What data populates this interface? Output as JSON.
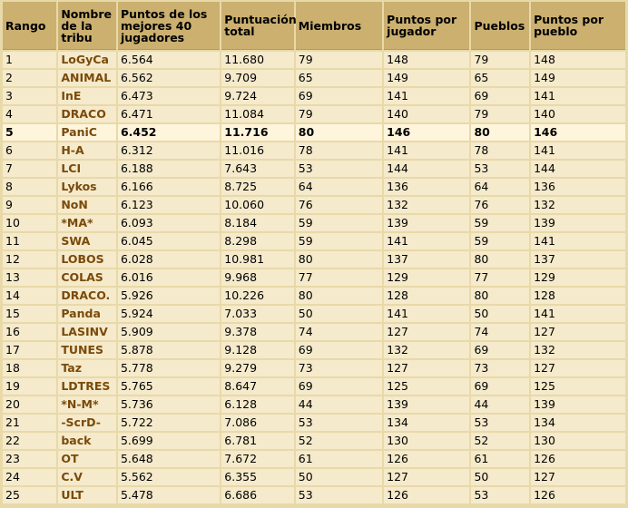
{
  "headers": {
    "rank": "Rango",
    "tribe": "Nombre de la tribu",
    "top40": "Puntos de los mejores 40 jugadores",
    "total": "Puntuación total",
    "members": "Miembros",
    "per_player": "Puntos por jugador",
    "villages": "Pueblos",
    "per_village": "Puntos por pueblo"
  },
  "highlighted_rank": "5",
  "rows": [
    {
      "rank": "1",
      "tribe": "LoGyCa",
      "top40": "6.564",
      "total": "11.680",
      "members": "79",
      "per_player": "148",
      "villages": "79",
      "per_village": "148"
    },
    {
      "rank": "2",
      "tribe": "ANIMAL",
      "top40": "6.562",
      "total": "9.709",
      "members": "65",
      "per_player": "149",
      "villages": "65",
      "per_village": "149"
    },
    {
      "rank": "3",
      "tribe": "InE",
      "top40": "6.473",
      "total": "9.724",
      "members": "69",
      "per_player": "141",
      "villages": "69",
      "per_village": "141"
    },
    {
      "rank": "4",
      "tribe": "DRACO",
      "top40": "6.471",
      "total": "11.084",
      "members": "79",
      "per_player": "140",
      "villages": "79",
      "per_village": "140"
    },
    {
      "rank": "5",
      "tribe": "PaniC",
      "top40": "6.452",
      "total": "11.716",
      "members": "80",
      "per_player": "146",
      "villages": "80",
      "per_village": "146"
    },
    {
      "rank": "6",
      "tribe": "H-A",
      "top40": "6.312",
      "total": "11.016",
      "members": "78",
      "per_player": "141",
      "villages": "78",
      "per_village": "141"
    },
    {
      "rank": "7",
      "tribe": "LCI",
      "top40": "6.188",
      "total": "7.643",
      "members": "53",
      "per_player": "144",
      "villages": "53",
      "per_village": "144"
    },
    {
      "rank": "8",
      "tribe": "Lykos",
      "top40": "6.166",
      "total": "8.725",
      "members": "64",
      "per_player": "136",
      "villages": "64",
      "per_village": "136"
    },
    {
      "rank": "9",
      "tribe": "NoN",
      "top40": "6.123",
      "total": "10.060",
      "members": "76",
      "per_player": "132",
      "villages": "76",
      "per_village": "132"
    },
    {
      "rank": "10",
      "tribe": "*MA*",
      "top40": "6.093",
      "total": "8.184",
      "members": "59",
      "per_player": "139",
      "villages": "59",
      "per_village": "139"
    },
    {
      "rank": "11",
      "tribe": "SWA",
      "top40": "6.045",
      "total": "8.298",
      "members": "59",
      "per_player": "141",
      "villages": "59",
      "per_village": "141"
    },
    {
      "rank": "12",
      "tribe": "LOBOS",
      "top40": "6.028",
      "total": "10.981",
      "members": "80",
      "per_player": "137",
      "villages": "80",
      "per_village": "137"
    },
    {
      "rank": "13",
      "tribe": "COLAS",
      "top40": "6.016",
      "total": "9.968",
      "members": "77",
      "per_player": "129",
      "villages": "77",
      "per_village": "129"
    },
    {
      "rank": "14",
      "tribe": "DRACO.",
      "top40": "5.926",
      "total": "10.226",
      "members": "80",
      "per_player": "128",
      "villages": "80",
      "per_village": "128"
    },
    {
      "rank": "15",
      "tribe": "Panda",
      "top40": "5.924",
      "total": "7.033",
      "members": "50",
      "per_player": "141",
      "villages": "50",
      "per_village": "141"
    },
    {
      "rank": "16",
      "tribe": "LASINV",
      "top40": "5.909",
      "total": "9.378",
      "members": "74",
      "per_player": "127",
      "villages": "74",
      "per_village": "127"
    },
    {
      "rank": "17",
      "tribe": "TUNES",
      "top40": "5.878",
      "total": "9.128",
      "members": "69",
      "per_player": "132",
      "villages": "69",
      "per_village": "132"
    },
    {
      "rank": "18",
      "tribe": "Taz",
      "top40": "5.778",
      "total": "9.279",
      "members": "73",
      "per_player": "127",
      "villages": "73",
      "per_village": "127"
    },
    {
      "rank": "19",
      "tribe": "LDTRES",
      "top40": "5.765",
      "total": "8.647",
      "members": "69",
      "per_player": "125",
      "villages": "69",
      "per_village": "125"
    },
    {
      "rank": "20",
      "tribe": "*N-M*",
      "top40": "5.736",
      "total": "6.128",
      "members": "44",
      "per_player": "139",
      "villages": "44",
      "per_village": "139"
    },
    {
      "rank": "21",
      "tribe": "-ScrD-",
      "top40": "5.722",
      "total": "7.086",
      "members": "53",
      "per_player": "134",
      "villages": "53",
      "per_village": "134"
    },
    {
      "rank": "22",
      "tribe": "back",
      "top40": "5.699",
      "total": "6.781",
      "members": "52",
      "per_player": "130",
      "villages": "52",
      "per_village": "130"
    },
    {
      "rank": "23",
      "tribe": "OT",
      "top40": "5.648",
      "total": "7.672",
      "members": "61",
      "per_player": "126",
      "villages": "61",
      "per_village": "126"
    },
    {
      "rank": "24",
      "tribe": "C.V",
      "top40": "5.562",
      "total": "6.355",
      "members": "50",
      "per_player": "127",
      "villages": "50",
      "per_village": "127"
    },
    {
      "rank": "25",
      "tribe": "ULT",
      "top40": "5.478",
      "total": "6.686",
      "members": "53",
      "per_player": "126",
      "villages": "53",
      "per_village": "126"
    }
  ]
}
